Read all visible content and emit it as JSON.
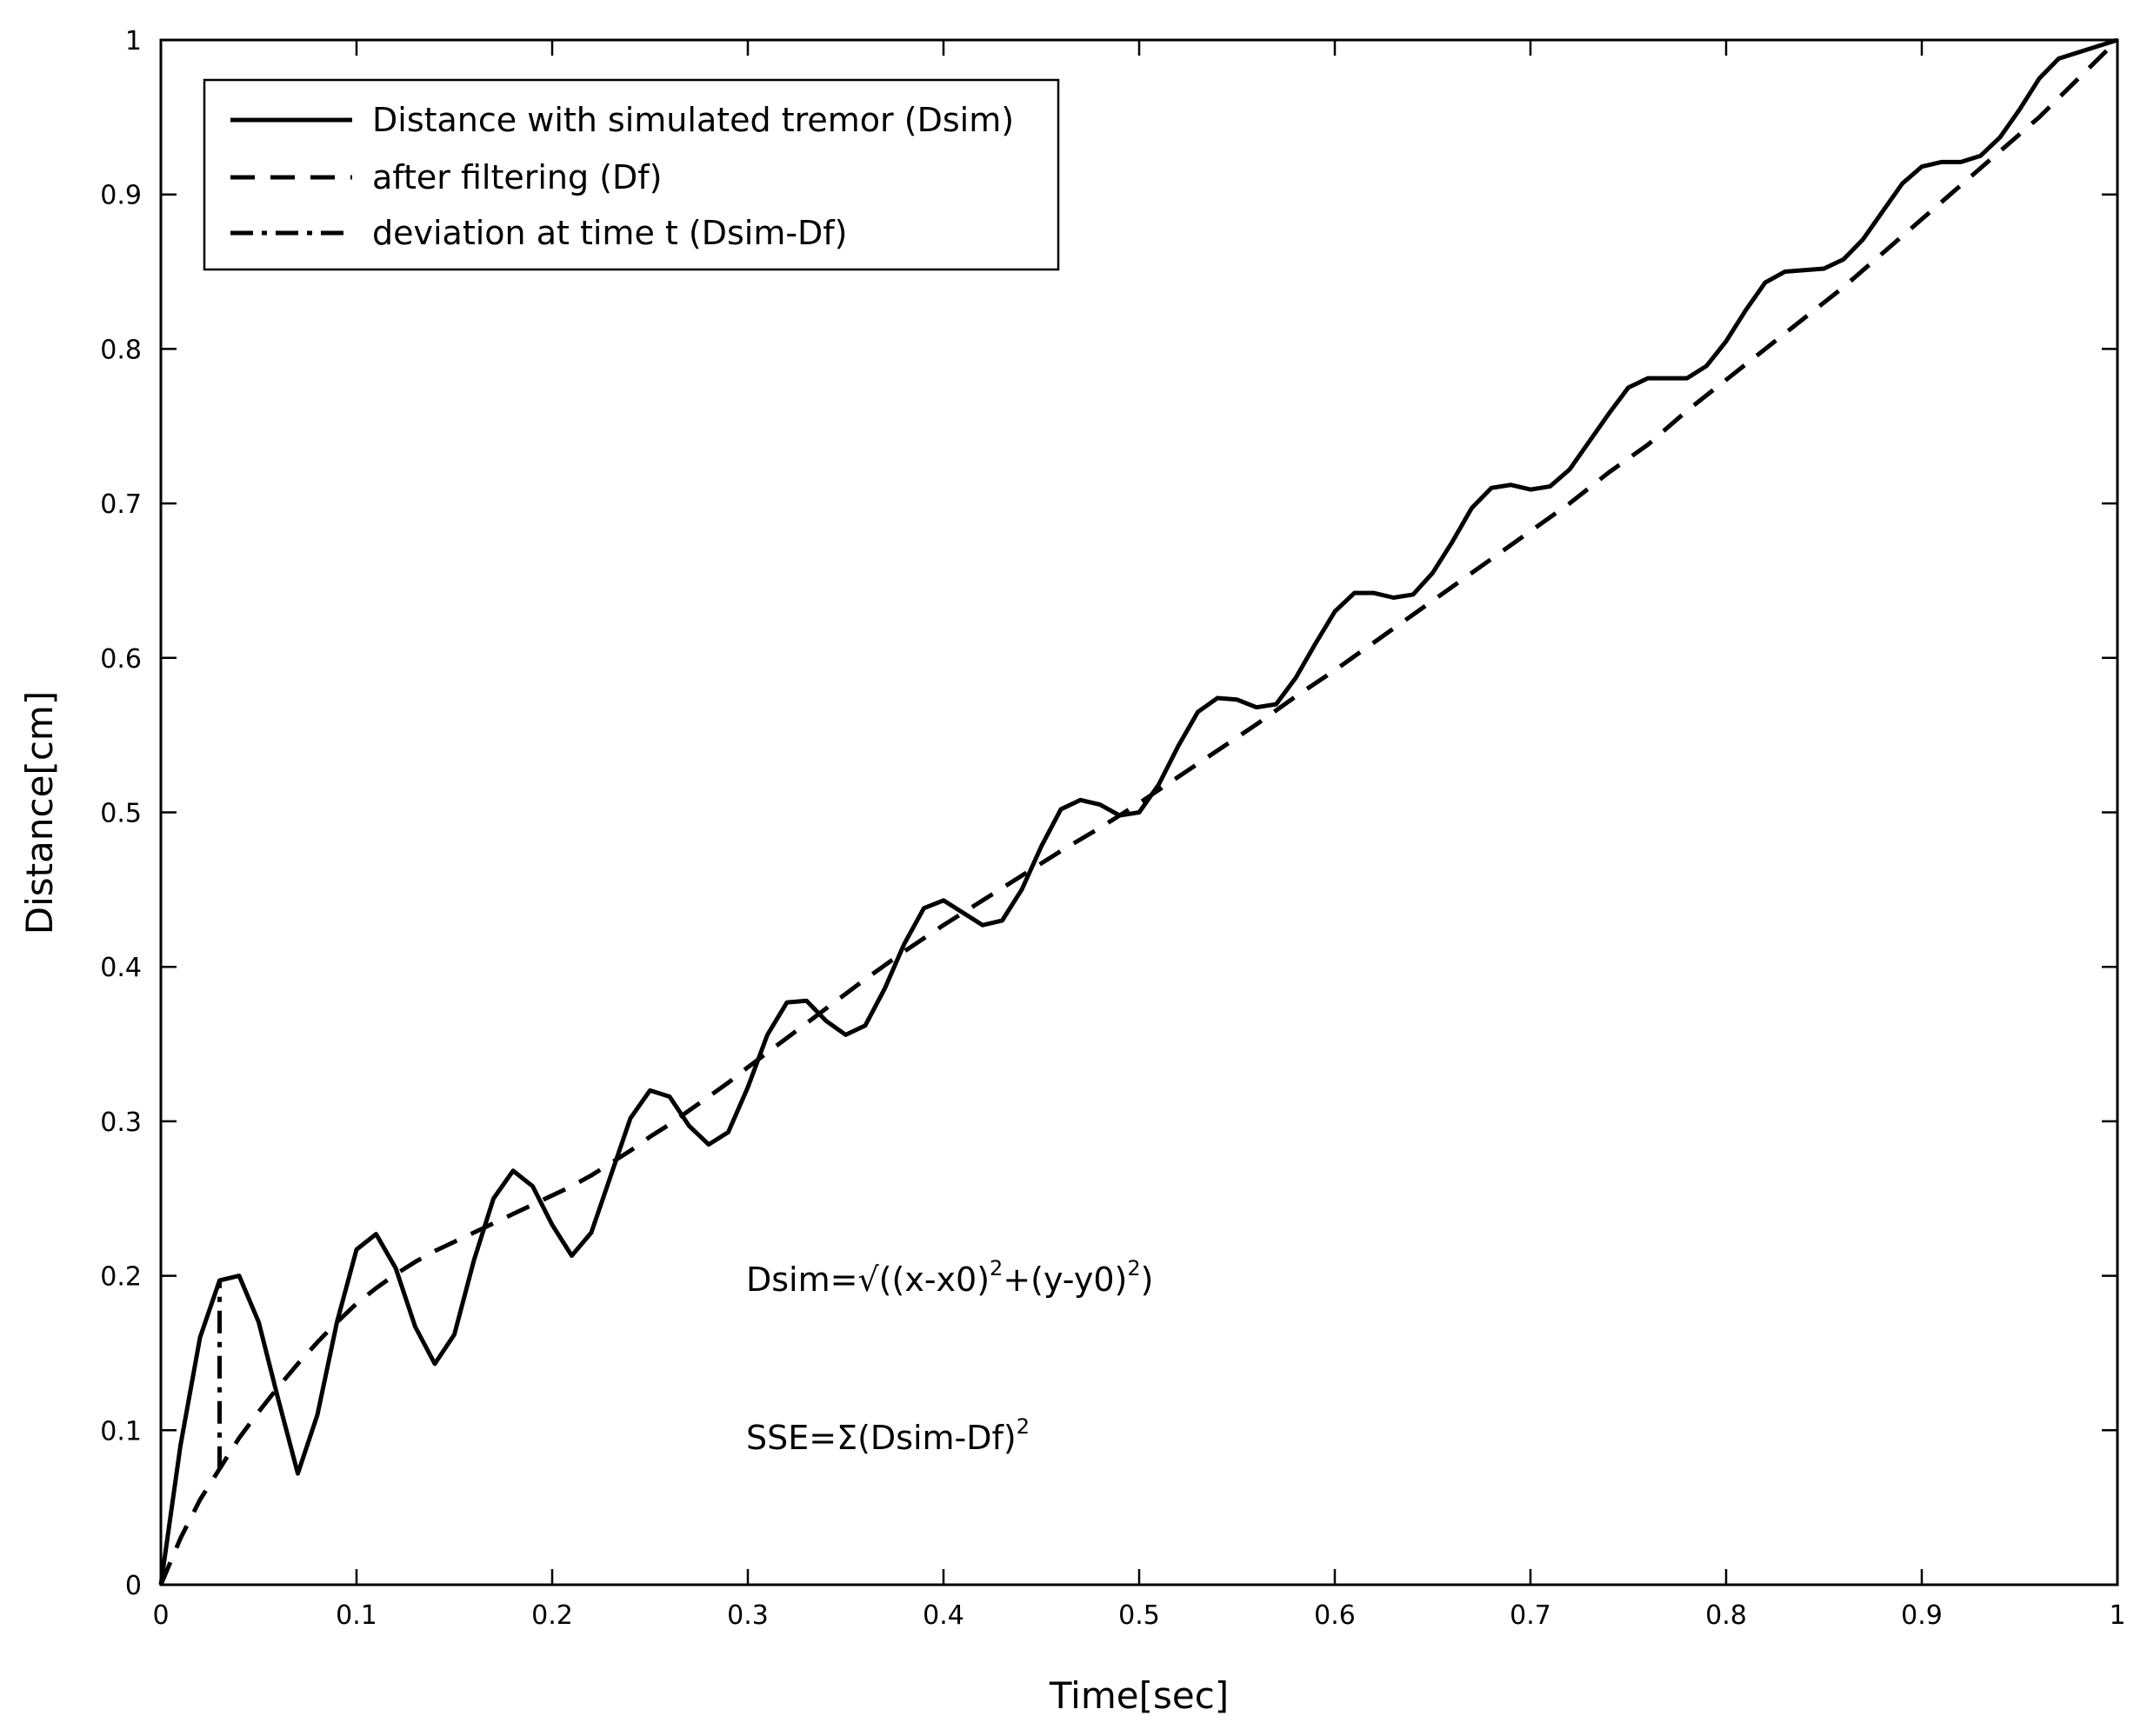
{
  "chart_data": {
    "type": "line",
    "xlabel": "Time[sec]",
    "ylabel": "Distance[cm]",
    "xlim": [
      0,
      1
    ],
    "ylim": [
      0,
      1
    ],
    "xticks": [
      "0",
      "0.1",
      "0.2",
      "0.3",
      "0.4",
      "0.5",
      "0.6",
      "0.7",
      "0.8",
      "0.9",
      "1"
    ],
    "yticks": [
      "0",
      "0.1",
      "0.2",
      "0.3",
      "0.4",
      "0.5",
      "0.6",
      "0.7",
      "0.8",
      "0.9",
      "1"
    ],
    "grid": false,
    "legend_position": "top-left",
    "series": [
      {
        "name": "Distance with simulated tremor (Dsim)",
        "style": "solid",
        "x": [
          0,
          0.01,
          0.02,
          0.03,
          0.04,
          0.05,
          0.06,
          0.07,
          0.08,
          0.09,
          0.1,
          0.11,
          0.12,
          0.13,
          0.14,
          0.15,
          0.16,
          0.17,
          0.18,
          0.19,
          0.2,
          0.21,
          0.22,
          0.23,
          0.24,
          0.25,
          0.26,
          0.27,
          0.28,
          0.29,
          0.3,
          0.31,
          0.32,
          0.33,
          0.34,
          0.35,
          0.36,
          0.37,
          0.38,
          0.39,
          0.4,
          0.41,
          0.42,
          0.43,
          0.44,
          0.45,
          0.46,
          0.47,
          0.48,
          0.49,
          0.5,
          0.51,
          0.52,
          0.53,
          0.54,
          0.55,
          0.56,
          0.57,
          0.58,
          0.59,
          0.6,
          0.61,
          0.62,
          0.63,
          0.64,
          0.65,
          0.66,
          0.67,
          0.68,
          0.69,
          0.7,
          0.71,
          0.72,
          0.73,
          0.74,
          0.75,
          0.76,
          0.77,
          0.78,
          0.79,
          0.8,
          0.81,
          0.82,
          0.83,
          0.84,
          0.85,
          0.86,
          0.87,
          0.88,
          0.89,
          0.9,
          0.91,
          0.92,
          0.93,
          0.94,
          0.95,
          0.96,
          0.97,
          0.98,
          0.99,
          1.0
        ],
        "y": [
          0,
          0.09,
          0.16,
          0.197,
          0.2,
          0.17,
          0.12,
          0.072,
          0.11,
          0.17,
          0.217,
          0.227,
          0.205,
          0.167,
          0.143,
          0.162,
          0.21,
          0.25,
          0.268,
          0.258,
          0.233,
          0.213,
          0.228,
          0.265,
          0.302,
          0.32,
          0.316,
          0.297,
          0.285,
          0.293,
          0.322,
          0.356,
          0.377,
          0.378,
          0.365,
          0.356,
          0.362,
          0.386,
          0.415,
          0.438,
          0.443,
          0.435,
          0.427,
          0.43,
          0.45,
          0.478,
          0.502,
          0.508,
          0.505,
          0.498,
          0.5,
          0.518,
          0.543,
          0.565,
          0.574,
          0.573,
          0.568,
          0.57,
          0.587,
          0.609,
          0.63,
          0.642,
          0.642,
          0.639,
          0.641,
          0.655,
          0.675,
          0.697,
          0.71,
          0.712,
          0.709,
          0.711,
          0.722,
          0.74,
          0.758,
          0.775,
          0.781,
          0.781,
          0.781,
          0.789,
          0.805,
          0.825,
          0.843,
          0.85,
          0.851,
          0.852,
          0.858,
          0.871,
          0.889,
          0.907,
          0.918,
          0.921,
          0.921,
          0.925,
          0.937,
          0.955,
          0.975,
          0.988,
          0.992,
          0.996,
          1.0
        ]
      },
      {
        "name": "after filtering (Df)",
        "style": "dashed",
        "x": [
          0,
          0.01,
          0.02,
          0.03,
          0.04,
          0.05,
          0.06,
          0.07,
          0.08,
          0.09,
          0.1,
          0.11,
          0.12,
          0.13,
          0.14,
          0.15,
          0.16,
          0.17,
          0.18,
          0.19,
          0.2,
          0.21,
          0.22,
          0.23,
          0.24,
          0.25,
          0.26,
          0.27,
          0.28,
          0.29,
          0.3,
          0.32,
          0.34,
          0.36,
          0.38,
          0.4,
          0.42,
          0.44,
          0.46,
          0.48,
          0.5,
          0.52,
          0.54,
          0.56,
          0.58,
          0.6,
          0.62,
          0.64,
          0.66,
          0.68,
          0.7,
          0.72,
          0.74,
          0.76,
          0.78,
          0.8,
          0.82,
          0.84,
          0.86,
          0.88,
          0.9,
          0.92,
          0.94,
          0.96,
          0.98,
          1.0
        ],
        "y": [
          0,
          0.03,
          0.055,
          0.075,
          0.095,
          0.112,
          0.128,
          0.143,
          0.157,
          0.17,
          0.182,
          0.192,
          0.201,
          0.209,
          0.216,
          0.222,
          0.228,
          0.234,
          0.24,
          0.246,
          0.252,
          0.258,
          0.265,
          0.273,
          0.281,
          0.29,
          0.298,
          0.307,
          0.316,
          0.325,
          0.335,
          0.354,
          0.373,
          0.392,
          0.41,
          0.427,
          0.443,
          0.459,
          0.475,
          0.49,
          0.506,
          0.523,
          0.54,
          0.557,
          0.575,
          0.592,
          0.61,
          0.628,
          0.646,
          0.664,
          0.682,
          0.7,
          0.72,
          0.738,
          0.76,
          0.78,
          0.8,
          0.82,
          0.84,
          0.862,
          0.884,
          0.906,
          0.928,
          0.95,
          0.975,
          1.0
        ]
      },
      {
        "name": "deviation at time t (Dsim-Df)",
        "style": "dashdot",
        "x": [
          0.03,
          0.03
        ],
        "y": [
          0.075,
          0.197
        ]
      }
    ],
    "annotations": [
      "Dsim=√((x-x0)^2+(y-y0)^2)",
      "SSE=Σ(Dsim-Df)^2"
    ]
  },
  "formulas": {
    "dsim": {
      "part1": "Dsim=√((x-x0)",
      "sup1": "2",
      "part2": "+(y-y0)",
      "sup2": "2",
      "part3": ")"
    },
    "sse": {
      "part1": "SSE=Σ(Dsim-Df)",
      "sup1": "2"
    }
  }
}
